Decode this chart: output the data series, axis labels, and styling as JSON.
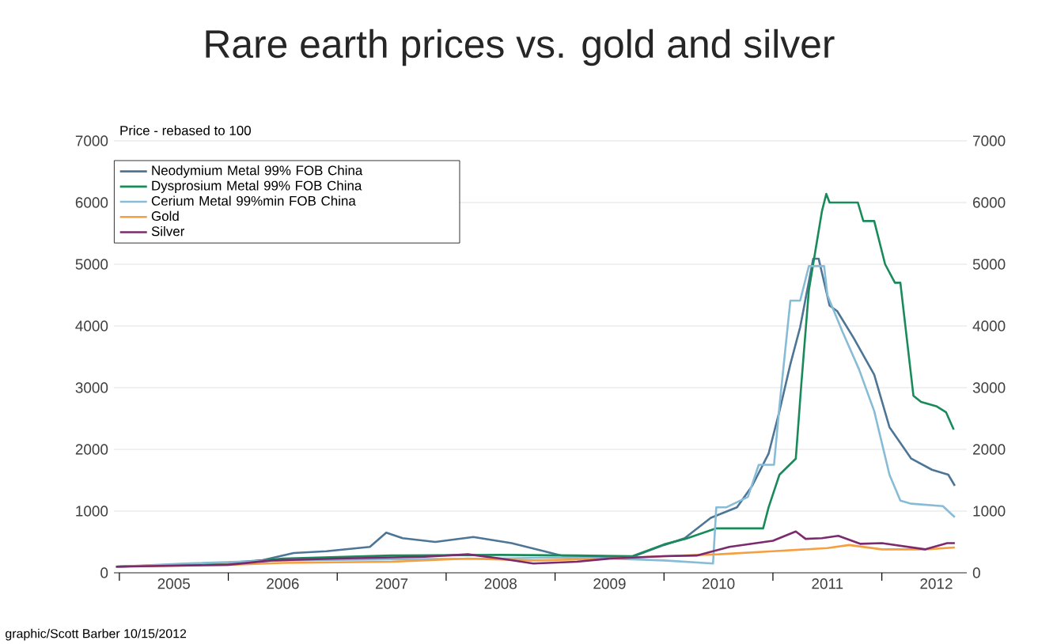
{
  "chart_data": {
    "type": "line",
    "title": "Rare earth prices vs. gold and silver",
    "ylabel": "Price - rebased to 100",
    "annotations": [
      "graphic/Scott Barber 10/15/2012"
    ],
    "xlim": [
      2004.95,
      2012.78
    ],
    "xticks": [
      {
        "value": 2005,
        "label": null
      },
      {
        "value": 2005.5,
        "label": "2005"
      },
      {
        "value": 2006,
        "label": null
      },
      {
        "value": 2006.5,
        "label": "2006"
      },
      {
        "value": 2007,
        "label": null
      },
      {
        "value": 2007.5,
        "label": "2007"
      },
      {
        "value": 2008,
        "label": null
      },
      {
        "value": 2008.5,
        "label": "2008"
      },
      {
        "value": 2009,
        "label": null
      },
      {
        "value": 2009.5,
        "label": "2009"
      },
      {
        "value": 2010,
        "label": null
      },
      {
        "value": 2010.5,
        "label": "2010"
      },
      {
        "value": 2011,
        "label": null
      },
      {
        "value": 2011.5,
        "label": "2011"
      },
      {
        "value": 2012,
        "label": null
      },
      {
        "value": 2012.5,
        "label": "2012"
      }
    ],
    "ylim": [
      0,
      7000
    ],
    "yticks": [
      0,
      1000,
      2000,
      3000,
      4000,
      5000,
      6000,
      7000
    ],
    "y2lim": [
      0,
      7000
    ],
    "y2ticks": [
      0,
      1000,
      2000,
      3000,
      4000,
      5000,
      6000,
      7000
    ],
    "grid": "y",
    "legend": "top left",
    "marker": "none",
    "line_style": "solid",
    "series": [
      {
        "name": "Neodymium Metal 99% FOB China",
        "color": "#4d7595",
        "x": [
          2004.97,
          2005.5,
          2005.9,
          2006.3,
          2006.6,
          2006.9,
          2007.3,
          2007.45,
          2007.6,
          2007.9,
          2008.25,
          2008.6,
          2008.9,
          2009.1,
          2009.5,
          2009.71,
          2010.0,
          2010.19,
          2010.43,
          2010.67,
          2010.81,
          2010.96,
          2011.06,
          2011.16,
          2011.25,
          2011.37,
          2011.42,
          2011.52,
          2011.59,
          2011.74,
          2011.93,
          2012.07,
          2012.27,
          2012.46,
          2012.61,
          2012.67
        ],
        "values": [
          100,
          130,
          150,
          200,
          320,
          350,
          420,
          650,
          560,
          500,
          580,
          480,
          350,
          260,
          250,
          260,
          450,
          560,
          890,
          1060,
          1410,
          1930,
          2620,
          3380,
          3980,
          5090,
          5090,
          4330,
          4240,
          3810,
          3210,
          2360,
          1850,
          1670,
          1590,
          1410
        ]
      },
      {
        "name": "Dysprosium Metal 99% FOB China",
        "color": "#1a8a5a",
        "x": [
          2004.97,
          2006.0,
          2006.5,
          2007.5,
          2008.5,
          2009.2,
          2009.71,
          2010.0,
          2010.2,
          2010.48,
          2010.91,
          2010.96,
          2011.06,
          2011.21,
          2011.26,
          2011.33,
          2011.45,
          2011.49,
          2011.52,
          2011.78,
          2011.83,
          2011.93,
          2012.03,
          2012.12,
          2012.17,
          2012.29,
          2012.36,
          2012.5,
          2012.59,
          2012.66
        ],
        "values": [
          100,
          150,
          230,
          280,
          290,
          280,
          270,
          460,
          550,
          720,
          720,
          1060,
          1590,
          1850,
          3040,
          4580,
          5860,
          6140,
          6000,
          6000,
          5700,
          5700,
          5000,
          4700,
          4700,
          2870,
          2770,
          2700,
          2600,
          2320
        ]
      },
      {
        "name": "Cerium Metal 99%min FOB China",
        "color": "#88bcd6",
        "x": [
          2004.97,
          2005.6,
          2006.5,
          2007.5,
          2008.5,
          2009.0,
          2009.5,
          2010.0,
          2010.45,
          2010.48,
          2010.57,
          2010.77,
          2010.87,
          2011.01,
          2011.06,
          2011.16,
          2011.25,
          2011.33,
          2011.47,
          2011.5,
          2011.64,
          2011.79,
          2011.93,
          2012.07,
          2012.17,
          2012.27,
          2012.56,
          2012.67
        ],
        "values": [
          100,
          150,
          200,
          220,
          230,
          250,
          230,
          200,
          150,
          1060,
          1060,
          1230,
          1750,
          1750,
          2700,
          4410,
          4410,
          4970,
          4970,
          4500,
          3900,
          3300,
          2620,
          1590,
          1170,
          1120,
          1080,
          900
        ]
      },
      {
        "name": "Gold",
        "color": "#f5a040",
        "x": [
          2004.97,
          2006.0,
          2006.5,
          2007.5,
          2008.2,
          2008.8,
          2009.5,
          2010.0,
          2010.5,
          2011.0,
          2011.5,
          2011.7,
          2012.0,
          2012.4,
          2012.67
        ],
        "values": [
          100,
          130,
          160,
          180,
          230,
          200,
          230,
          270,
          300,
          350,
          400,
          450,
          380,
          380,
          410
        ]
      },
      {
        "name": "Silver",
        "color": "#7b2a6e",
        "x": [
          2004.97,
          2006.0,
          2006.4,
          2007.0,
          2007.8,
          2008.2,
          2008.5,
          2008.8,
          2009.2,
          2009.5,
          2010.0,
          2010.3,
          2010.6,
          2011.0,
          2011.21,
          2011.3,
          2011.45,
          2011.6,
          2011.8,
          2012.0,
          2012.4,
          2012.6,
          2012.67
        ],
        "values": [
          100,
          130,
          200,
          230,
          260,
          300,
          230,
          150,
          180,
          230,
          270,
          280,
          420,
          520,
          670,
          550,
          560,
          600,
          470,
          480,
          380,
          480,
          480
        ]
      }
    ]
  }
}
